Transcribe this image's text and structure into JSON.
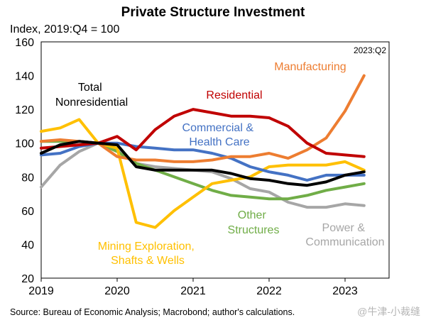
{
  "chart_data": {
    "type": "line",
    "title": "Private Structure Investment",
    "ylabel": "Index, 2019:Q4 = 100",
    "xlabel": "",
    "ylim": [
      20,
      160
    ],
    "yticks": [
      20,
      40,
      60,
      80,
      100,
      120,
      140,
      160
    ],
    "xticks": [
      "2019",
      "2020",
      "2021",
      "2022",
      "2023"
    ],
    "x": [
      "2019:Q1",
      "2019:Q2",
      "2019:Q3",
      "2019:Q4",
      "2020:Q1",
      "2020:Q2",
      "2020:Q3",
      "2020:Q4",
      "2021:Q1",
      "2021:Q2",
      "2021:Q3",
      "2021:Q4",
      "2022:Q1",
      "2022:Q2",
      "2022:Q3",
      "2022:Q4",
      "2023:Q1",
      "2023:Q2"
    ],
    "corner_label": "2023:Q2",
    "source": "Source: Bureau of Economic Analysis; Macrobond; author's calculations.",
    "grid": false,
    "legend": "inline labels",
    "series": [
      {
        "name": "Power & Communication",
        "color": "#a6a6a6",
        "values": [
          74,
          87,
          95,
          100,
          96,
          88,
          86,
          85,
          84,
          83,
          79,
          73,
          71,
          65,
          62,
          62,
          64,
          63
        ]
      },
      {
        "name": "Other Structures",
        "color": "#70ad47",
        "values": [
          101,
          101,
          101,
          100,
          95,
          88,
          84,
          80,
          76,
          72,
          69,
          68,
          67,
          67,
          69,
          72,
          74,
          76
        ]
      },
      {
        "name": "Mining Exploration, Shafts & Wells",
        "color": "#ffc000",
        "values": [
          107,
          109,
          114,
          100,
          97,
          53,
          50,
          60,
          68,
          76,
          78,
          80,
          86,
          87,
          87,
          87,
          89,
          84
        ]
      },
      {
        "name": "Commercial & Health Care",
        "color": "#4472c4",
        "values": [
          93,
          94,
          98,
          100,
          100,
          98,
          97,
          96,
          96,
          94,
          91,
          86,
          83,
          81,
          78,
          81,
          81,
          81
        ]
      },
      {
        "name": "Manufacturing",
        "color": "#ed7d31",
        "values": [
          101,
          102,
          101,
          100,
          92,
          90,
          90,
          89,
          89,
          90,
          92,
          92,
          94,
          91,
          96,
          103,
          119,
          140
        ]
      },
      {
        "name": "Residential",
        "color": "#c00000",
        "values": [
          97,
          98,
          99,
          100,
          104,
          96,
          108,
          116,
          120,
          118,
          116,
          116,
          115,
          110,
          100,
          94,
          93,
          92
        ]
      },
      {
        "name": "Total Nonresidential",
        "color": "#000000",
        "values": [
          94,
          99,
          101,
          100,
          99,
          86,
          84,
          84,
          84,
          84,
          82,
          79,
          78,
          76,
          75,
          77,
          81,
          83
        ]
      }
    ],
    "labels": {
      "power": [
        "Power &",
        "Communication"
      ],
      "other": [
        "Other",
        "Structures"
      ],
      "mining": [
        "Mining Exploration,",
        "Shafts & Wells"
      ],
      "commercial": [
        "Commercial &",
        "Health Care"
      ],
      "manufacturing": [
        "Manufacturing"
      ],
      "residential": [
        "Residential"
      ],
      "total": [
        "Total",
        "Nonresidential"
      ]
    }
  },
  "watermark": "@牛津-小裁缝"
}
